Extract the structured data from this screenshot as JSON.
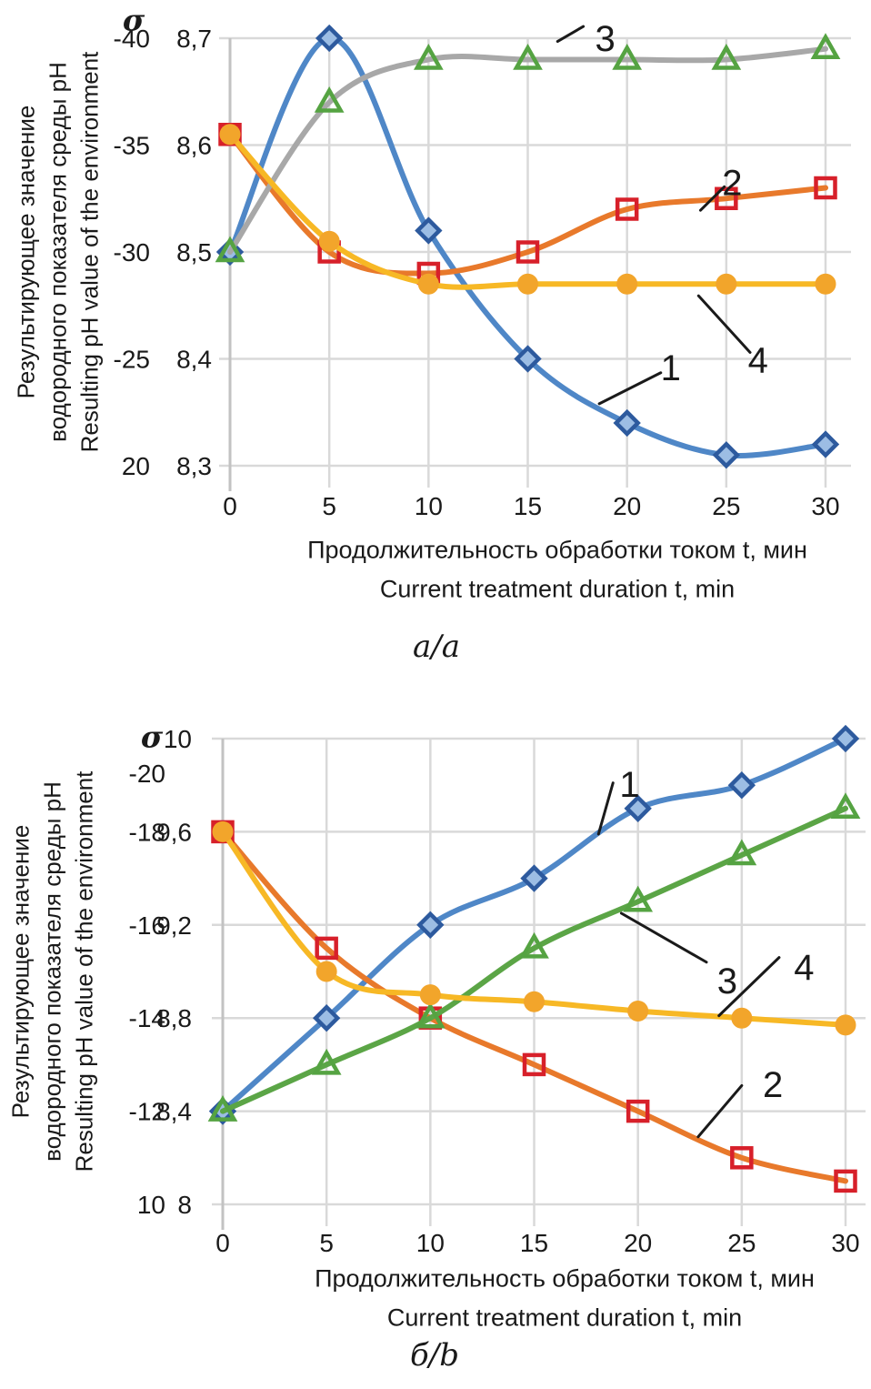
{
  "chart_data": [
    {
      "type": "line",
      "panel": "a",
      "caption": "a/a",
      "sigma_symbol": "σ",
      "ylabel_lines": [
        "Результирующее значение",
        "водородного показателя среды pH",
        "Resulting pH value of the environment"
      ],
      "xlabel_lines": [
        "Продолжительность обработки током t, мин",
        "Current treatment duration t, min"
      ],
      "x": [
        0,
        5,
        10,
        15,
        20,
        25,
        30
      ],
      "x_tick_labels": [
        "0",
        "5",
        "10",
        "15",
        "20",
        "25",
        "30"
      ],
      "ylim": [
        8.3,
        8.7
      ],
      "grid": true,
      "ph_ticks": [
        {
          "label": "8,7",
          "v": 8.7
        },
        {
          "label": "8,6",
          "v": 8.6
        },
        {
          "label": "8,5",
          "v": 8.5
        },
        {
          "label": "8,4",
          "v": 8.4
        },
        {
          "label": "8,3",
          "v": 8.3
        }
      ],
      "sigma_ticks": [
        {
          "label": "-40",
          "v": 8.7
        },
        {
          "label": "-35",
          "v": 8.6
        },
        {
          "label": "-30",
          "v": 8.5
        },
        {
          "label": "-25",
          "v": 8.4
        },
        {
          "label": "20",
          "v": 8.3
        }
      ],
      "series": [
        {
          "name": "1",
          "marker": "diamond",
          "line_color": "#4F87C7",
          "marker_color": "#2D5A9E",
          "marker_fill": "#9CBDE4",
          "values": [
            8.5,
            8.7,
            8.52,
            8.4,
            8.34,
            8.31,
            8.32
          ]
        },
        {
          "name": "2",
          "marker": "square",
          "line_color": "#E8792B",
          "marker_color": "#D7202A",
          "marker_fill": "none",
          "values": [
            8.61,
            8.5,
            8.48,
            8.5,
            8.54,
            8.55,
            8.56
          ]
        },
        {
          "name": "3",
          "marker": "triangle",
          "line_color": "#A8A8A8",
          "marker_color": "#55A342",
          "marker_fill": "none",
          "values": [
            8.5,
            8.64,
            8.68,
            8.68,
            8.68,
            8.68,
            8.69
          ]
        },
        {
          "name": "4",
          "marker": "circle",
          "line_color": "#F7B825",
          "marker_color": "#F2A52B",
          "marker_fill": "#F2A52B",
          "values": [
            8.61,
            8.51,
            8.47,
            8.47,
            8.47,
            8.47,
            8.47
          ]
        }
      ],
      "annotations": [
        {
          "label": "3",
          "label_at": [
            18.9,
            8.7
          ],
          "leader": [
            [
              16.5,
              8.697
            ],
            [
              17.8,
              8.711
            ]
          ]
        },
        {
          "label": "2",
          "label_at": [
            25.3,
            8.565
          ],
          "leader": [
            [
              23.7,
              8.539
            ],
            [
              24.9,
              8.561
            ]
          ]
        },
        {
          "label": "1",
          "label_at": [
            22.2,
            8.392
          ],
          "leader": [
            [
              18.6,
              8.358
            ],
            [
              21.7,
              8.387
            ]
          ]
        },
        {
          "label": "4",
          "label_at": [
            26.6,
            8.399
          ],
          "leader": [
            [
              23.6,
              8.459
            ],
            [
              26.2,
              8.406
            ]
          ]
        }
      ]
    },
    {
      "type": "line",
      "panel": "b",
      "caption": "б/b",
      "sigma_symbol": "σ",
      "ylabel_lines": [
        "Результирующее значение",
        "водородного показателя среды pH",
        "Resulting pH value of the environment"
      ],
      "xlabel_lines": [
        "Продолжительность обработки током t, мин",
        "Current treatment duration t, min"
      ],
      "x": [
        0,
        5,
        10,
        15,
        20,
        25,
        30
      ],
      "x_tick_labels": [
        "0",
        "5",
        "10",
        "15",
        "20",
        "25",
        "30"
      ],
      "ylim": [
        8.0,
        10.0
      ],
      "grid": true,
      "ph_ticks": [
        {
          "label": "10",
          "v": 10.0
        },
        {
          "label": "9,6",
          "v": 9.6
        },
        {
          "label": "9,2",
          "v": 9.2
        },
        {
          "label": "8,8",
          "v": 8.8
        },
        {
          "label": "8,4",
          "v": 8.4
        },
        {
          "label": "8",
          "v": 8.0
        }
      ],
      "sigma_ticks": [
        {
          "label": "-20",
          "v": 9.852
        },
        {
          "label": "-18",
          "v": 9.6
        },
        {
          "label": "-16",
          "v": 9.2
        },
        {
          "label": "-14",
          "v": 8.8
        },
        {
          "label": "-12",
          "v": 8.4
        },
        {
          "label": "10",
          "v": 8.0
        }
      ],
      "series": [
        {
          "name": "1",
          "marker": "diamond",
          "line_color": "#4F87C7",
          "marker_color": "#2D5A9E",
          "marker_fill": "#9CBDE4",
          "values": [
            8.4,
            8.8,
            9.2,
            9.4,
            9.7,
            9.8,
            10.0
          ]
        },
        {
          "name": "2",
          "marker": "square",
          "line_color": "#E8792B",
          "marker_color": "#D7202A",
          "marker_fill": "none",
          "values": [
            9.6,
            9.1,
            8.8,
            8.6,
            8.4,
            8.2,
            8.1
          ]
        },
        {
          "name": "3",
          "marker": "triangle",
          "line_color": "#5BA546",
          "marker_color": "#55A342",
          "marker_fill": "none",
          "values": [
            8.4,
            8.6,
            8.8,
            9.1,
            9.3,
            9.5,
            9.7
          ]
        },
        {
          "name": "4",
          "marker": "circle",
          "line_color": "#F7B825",
          "marker_color": "#F2A52B",
          "marker_fill": "#F2A52B",
          "values": [
            9.6,
            9.0,
            8.9,
            8.87,
            8.83,
            8.8,
            8.77
          ]
        }
      ],
      "annotations": [
        {
          "label": "1",
          "label_at": [
            19.6,
            9.805
          ],
          "leader": [
            [
              18.1,
              9.59
            ],
            [
              18.8,
              9.81
            ]
          ]
        },
        {
          "label": "3",
          "label_at": [
            24.3,
            8.96
          ],
          "leader": [
            [
              19.2,
              9.25
            ],
            [
              23.3,
              9.04
            ]
          ]
        },
        {
          "label": "4",
          "label_at": [
            28.0,
            9.02
          ],
          "leader": [
            [
              26.8,
              9.06
            ],
            [
              23.9,
              8.81
            ]
          ]
        },
        {
          "label": "2",
          "label_at": [
            26.5,
            8.516
          ],
          "leader": [
            [
              25.0,
              8.51
            ],
            [
              22.9,
              8.29
            ]
          ]
        }
      ]
    }
  ]
}
